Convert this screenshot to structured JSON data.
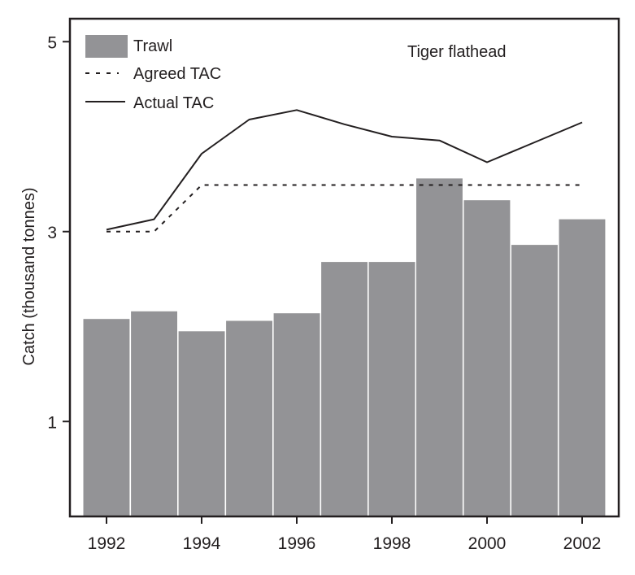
{
  "chart_data": {
    "type": "bar",
    "title": "",
    "annotation": "Tiger flathead",
    "xlabel": "",
    "ylabel": "Catch (thousand tonnes)",
    "ylim": [
      0,
      5.2
    ],
    "xlim": [
      1991.5,
      2002.75
    ],
    "yticks": [
      1,
      3,
      5
    ],
    "ytick_labels": [
      "1",
      "3",
      "5"
    ],
    "xticks": [
      1992,
      1994,
      1996,
      1998,
      2000,
      2002
    ],
    "xtick_labels": [
      "1992",
      "1994",
      "1996",
      "1998",
      "2000",
      "2002"
    ],
    "grid": false,
    "legend_position": "top-left",
    "categories": [
      1992,
      1993,
      1994,
      1995,
      1996,
      1997,
      1998,
      1999,
      2000,
      2001,
      2002
    ],
    "series": [
      {
        "name": "Trawl",
        "type": "bar",
        "color": "#939396",
        "x": [
          1992,
          1993,
          1994,
          1995,
          1996,
          1997,
          1998,
          1999,
          2000,
          2001,
          2002
        ],
        "values": [
          2.08,
          2.16,
          1.95,
          2.06,
          2.14,
          2.68,
          2.68,
          3.56,
          3.33,
          2.86,
          3.13
        ]
      },
      {
        "name": "Agreed TAC",
        "type": "line",
        "style": "dashed",
        "color": "#231f20",
        "x": [
          1992,
          1993,
          1994,
          1995,
          1996,
          1997,
          1998,
          1999,
          2000,
          2001,
          2002
        ],
        "values": [
          3.0,
          3.0,
          3.49,
          3.49,
          3.49,
          3.49,
          3.49,
          3.49,
          3.49,
          3.49,
          3.49
        ]
      },
      {
        "name": "Actual TAC",
        "type": "line",
        "style": "solid",
        "color": "#231f20",
        "x": [
          1992,
          1993,
          1994,
          1995,
          1996,
          1997,
          1998,
          1999,
          2000,
          2001,
          2002
        ],
        "values": [
          3.02,
          3.13,
          3.82,
          4.18,
          4.28,
          4.13,
          4.0,
          3.96,
          3.73,
          3.94,
          4.15
        ]
      }
    ]
  }
}
